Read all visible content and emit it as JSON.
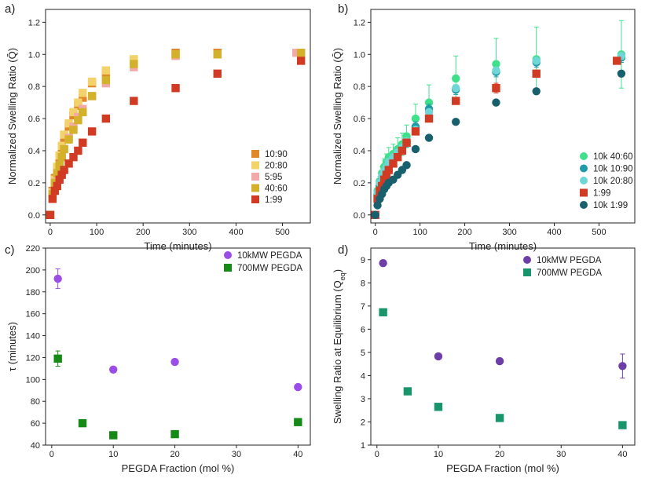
{
  "colors": {
    "c_10_90": "#e0872a",
    "c_20_80": "#f2d269",
    "c_5_95": "#f2a9a9",
    "c_40_60": "#d4b12a",
    "c_1_99": "#d13b23",
    "t_40_60": "#3ee08c",
    "t_10_90": "#1e9aa8",
    "t_20_80": "#6fd6d6",
    "t_1_99": "#19606e",
    "purple": "#9b4de8",
    "purple_d": "#6e3ea8",
    "green": "#168a16",
    "teal_sq": "#18956a"
  },
  "chart_data": [
    {
      "id": "a",
      "panel_label": "a)",
      "type": "scatter",
      "xlabel": "Time (minutes)",
      "ylabel": "Normalized Swelling Ratio (Q̄)",
      "xlim": [
        -10,
        560
      ],
      "ylim": [
        -0.05,
        1.28
      ],
      "xticks": [
        0,
        100,
        200,
        300,
        400,
        500
      ],
      "yticks": [
        0.0,
        0.2,
        0.4,
        0.6,
        0.8,
        1.0,
        1.2
      ],
      "xtick_labels": [
        "0",
        "100",
        "200",
        "300",
        "400",
        "500"
      ],
      "ytick_labels": [
        "0.0",
        "0.2",
        "0.4",
        "0.6",
        "0.8",
        "1.0",
        "1.2"
      ],
      "legend_position": "bottom-right",
      "series": [
        {
          "name": "10:90",
          "marker": "square",
          "color_key": "c_10_90",
          "x": [
            0,
            5,
            10,
            15,
            20,
            25,
            30,
            40,
            50,
            60,
            70,
            90,
            120,
            180,
            270,
            360,
            540
          ],
          "y": [
            0.0,
            0.15,
            0.23,
            0.29,
            0.36,
            0.42,
            0.48,
            0.55,
            0.62,
            0.68,
            0.73,
            0.82,
            0.88,
            0.96,
            1.01,
            1.01,
            1.01
          ]
        },
        {
          "name": "20:80",
          "marker": "square",
          "color_key": "c_20_80",
          "x": [
            0,
            5,
            10,
            15,
            20,
            25,
            30,
            40,
            50,
            60,
            70,
            90,
            120,
            180,
            270,
            360,
            540
          ],
          "y": [
            0.0,
            0.14,
            0.22,
            0.3,
            0.37,
            0.43,
            0.5,
            0.57,
            0.64,
            0.7,
            0.76,
            0.83,
            0.9,
            0.97,
            1.0,
            1.0,
            1.01
          ]
        },
        {
          "name": "5:95",
          "marker": "square",
          "color_key": "c_5_95",
          "x": [
            0,
            5,
            10,
            15,
            20,
            25,
            30,
            40,
            50,
            60,
            70,
            90,
            120,
            180,
            270,
            360,
            530
          ],
          "y": [
            0.0,
            0.12,
            0.19,
            0.25,
            0.31,
            0.36,
            0.41,
            0.48,
            0.55,
            0.61,
            0.66,
            0.74,
            0.82,
            0.92,
            0.99,
            1.0,
            1.01
          ]
        },
        {
          "name": "40:60",
          "marker": "square",
          "color_key": "c_40_60",
          "x": [
            0,
            5,
            10,
            15,
            20,
            25,
            30,
            40,
            50,
            60,
            70,
            90,
            120,
            180,
            270,
            360,
            540
          ],
          "y": [
            0.0,
            0.13,
            0.2,
            0.26,
            0.31,
            0.36,
            0.41,
            0.47,
            0.53,
            0.59,
            0.64,
            0.74,
            0.84,
            0.94,
            1.0,
            1.0,
            1.01
          ]
        },
        {
          "name": "1:99",
          "marker": "square",
          "color_key": "c_1_99",
          "x": [
            0,
            5,
            10,
            15,
            20,
            25,
            30,
            40,
            50,
            60,
            70,
            90,
            120,
            180,
            270,
            360,
            540
          ],
          "y": [
            0.0,
            0.1,
            0.15,
            0.18,
            0.22,
            0.25,
            0.28,
            0.32,
            0.36,
            0.4,
            0.45,
            0.52,
            0.6,
            0.71,
            0.79,
            0.88,
            0.96
          ]
        }
      ]
    },
    {
      "id": "b",
      "panel_label": "b)",
      "type": "scatter",
      "xlabel": "Time (minutes)",
      "ylabel": "Normalized Swelling Ratio (Q̄)",
      "xlim": [
        -10,
        580
      ],
      "ylim": [
        -0.05,
        1.28
      ],
      "xticks": [
        0,
        100,
        200,
        300,
        400,
        500
      ],
      "yticks": [
        0.0,
        0.2,
        0.4,
        0.6,
        0.8,
        1.0,
        1.2
      ],
      "xtick_labels": [
        "0",
        "100",
        "200",
        "300",
        "400",
        "500"
      ],
      "ytick_labels": [
        "0.0",
        "0.2",
        "0.4",
        "0.6",
        "0.8",
        "1.0",
        "1.2"
      ],
      "legend_position": "bottom-right",
      "series": [
        {
          "name": "10k 40:60",
          "marker": "circle",
          "color_key": "t_40_60",
          "x": [
            0,
            5,
            10,
            15,
            20,
            25,
            30,
            40,
            50,
            60,
            70,
            90,
            120,
            180,
            270,
            360,
            550
          ],
          "y": [
            0.0,
            0.15,
            0.21,
            0.26,
            0.3,
            0.33,
            0.36,
            0.38,
            0.41,
            0.44,
            0.49,
            0.6,
            0.7,
            0.85,
            0.94,
            0.97,
            1.0
          ],
          "err": [
            0,
            0.03,
            0.03,
            0.04,
            0.05,
            0.05,
            0.06,
            0.06,
            0.07,
            0.07,
            0.07,
            0.09,
            0.11,
            0.14,
            0.16,
            0.2,
            0.21
          ]
        },
        {
          "name": "10k 10:90",
          "marker": "circle",
          "color_key": "t_10_90",
          "x": [
            0,
            5,
            10,
            15,
            20,
            25,
            30,
            40,
            50,
            60,
            70,
            90,
            120,
            180,
            270,
            360,
            550
          ],
          "y": [
            0.0,
            0.13,
            0.18,
            0.22,
            0.26,
            0.29,
            0.32,
            0.35,
            0.38,
            0.41,
            0.45,
            0.55,
            0.66,
            0.78,
            0.89,
            0.95,
            0.98
          ],
          "err": [
            0,
            0.02,
            0.02,
            0.02,
            0.03,
            0.03,
            0.03,
            0.03,
            0.03,
            0.03,
            0.03,
            0.03,
            0.03,
            0.03,
            0.03,
            0.03,
            0.03
          ]
        },
        {
          "name": "10k 20:80",
          "marker": "circle",
          "color_key": "t_20_80",
          "x": [
            0,
            5,
            10,
            15,
            20,
            25,
            30,
            40,
            50,
            60,
            70,
            90,
            120,
            180,
            270,
            360,
            550
          ],
          "y": [
            0.0,
            0.14,
            0.2,
            0.24,
            0.27,
            0.3,
            0.33,
            0.36,
            0.39,
            0.42,
            0.46,
            0.53,
            0.64,
            0.79,
            0.9,
            0.96,
            0.99
          ],
          "err": [
            0,
            0.02,
            0.02,
            0.02,
            0.02,
            0.02,
            0.02,
            0.02,
            0.02,
            0.02,
            0.02,
            0.02,
            0.02,
            0.02,
            0.02,
            0.02,
            0.02
          ]
        },
        {
          "name": "1:99",
          "marker": "square",
          "color_key": "c_1_99",
          "x": [
            0,
            5,
            10,
            15,
            20,
            25,
            30,
            40,
            50,
            60,
            70,
            90,
            120,
            180,
            270,
            360,
            540
          ],
          "y": [
            0.0,
            0.1,
            0.15,
            0.18,
            0.22,
            0.25,
            0.28,
            0.32,
            0.36,
            0.4,
            0.45,
            0.52,
            0.6,
            0.71,
            0.79,
            0.88,
            0.96
          ],
          "err": [
            0,
            0.01,
            0.01,
            0.01,
            0.01,
            0.01,
            0.01,
            0.01,
            0.01,
            0.01,
            0.01,
            0.02,
            0.02,
            0.02,
            0.03,
            0.02,
            0.02
          ]
        },
        {
          "name": "10k 1:99",
          "marker": "circle",
          "color_key": "t_1_99",
          "x": [
            0,
            5,
            10,
            15,
            20,
            25,
            30,
            40,
            50,
            60,
            70,
            90,
            120,
            180,
            270,
            360,
            550
          ],
          "y": [
            0.0,
            0.06,
            0.1,
            0.13,
            0.16,
            0.18,
            0.2,
            0.22,
            0.25,
            0.28,
            0.31,
            0.41,
            0.48,
            0.58,
            0.7,
            0.77,
            0.88
          ],
          "err": [
            0,
            0.01,
            0.01,
            0.01,
            0.01,
            0.01,
            0.01,
            0.01,
            0.01,
            0.01,
            0.01,
            0.01,
            0.01,
            0.01,
            0.01,
            0.01,
            0.01
          ]
        }
      ]
    },
    {
      "id": "c",
      "panel_label": "c)",
      "type": "scatter",
      "xlabel": "PEGDA Fraction (mol %)",
      "ylabel": "τ (minutes)",
      "xlim": [
        -1,
        42
      ],
      "ylim": [
        40,
        220
      ],
      "xticks": [
        0,
        10,
        20,
        30,
        40
      ],
      "yticks": [
        40,
        60,
        80,
        100,
        120,
        140,
        160,
        180,
        200,
        220
      ],
      "xtick_labels": [
        "0",
        "10",
        "20",
        "30",
        "40"
      ],
      "ytick_labels": [
        "40",
        "60",
        "80",
        "100",
        "120",
        "140",
        "160",
        "180",
        "200",
        "220"
      ],
      "legend_position": "top-right",
      "series": [
        {
          "name": "10kMW PEGDA",
          "marker": "circle",
          "color_key": "purple",
          "x": [
            1,
            10,
            20,
            40
          ],
          "y": [
            192,
            109,
            116,
            93
          ],
          "err": [
            9,
            2,
            2,
            2
          ]
        },
        {
          "name": "700MW PEGDA",
          "marker": "square",
          "color_key": "green",
          "x": [
            1,
            5,
            10,
            20,
            40
          ],
          "y": [
            119,
            60,
            49,
            50,
            61
          ],
          "err": [
            7,
            1,
            1,
            1,
            1
          ]
        }
      ]
    },
    {
      "id": "d",
      "panel_label": "d)",
      "type": "scatter",
      "xlabel": "PEGDA Fraction (mol %)",
      "ylabel": "Swelling Ratio at Equilibrium (Q",
      "ylabel_sub": "eq",
      "ylabel_end": ")",
      "xlim": [
        -1,
        42
      ],
      "ylim": [
        1,
        9.5
      ],
      "xticks": [
        0,
        10,
        20,
        30,
        40
      ],
      "yticks": [
        1,
        2,
        3,
        4,
        5,
        6,
        7,
        8,
        9
      ],
      "xtick_labels": [
        "0",
        "10",
        "20",
        "30",
        "40"
      ],
      "ytick_labels": [
        "1",
        "2",
        "3",
        "4",
        "5",
        "6",
        "7",
        "8",
        "9"
      ],
      "legend_position": "top-right",
      "series": [
        {
          "name": "10kMW PEGDA",
          "marker": "circle",
          "color_key": "purple_d",
          "x": [
            1,
            10,
            20,
            40
          ],
          "y": [
            8.85,
            4.83,
            4.62,
            4.41
          ],
          "err": [
            0.08,
            0.05,
            0.05,
            0.52
          ]
        },
        {
          "name": "700MW PEGDA",
          "marker": "square",
          "color_key": "teal_sq",
          "x": [
            1,
            5,
            10,
            20,
            40
          ],
          "y": [
            6.73,
            3.32,
            2.65,
            2.17,
            1.86
          ],
          "err": [
            0.05,
            0.04,
            0.04,
            0.04,
            0.04
          ]
        }
      ]
    }
  ]
}
